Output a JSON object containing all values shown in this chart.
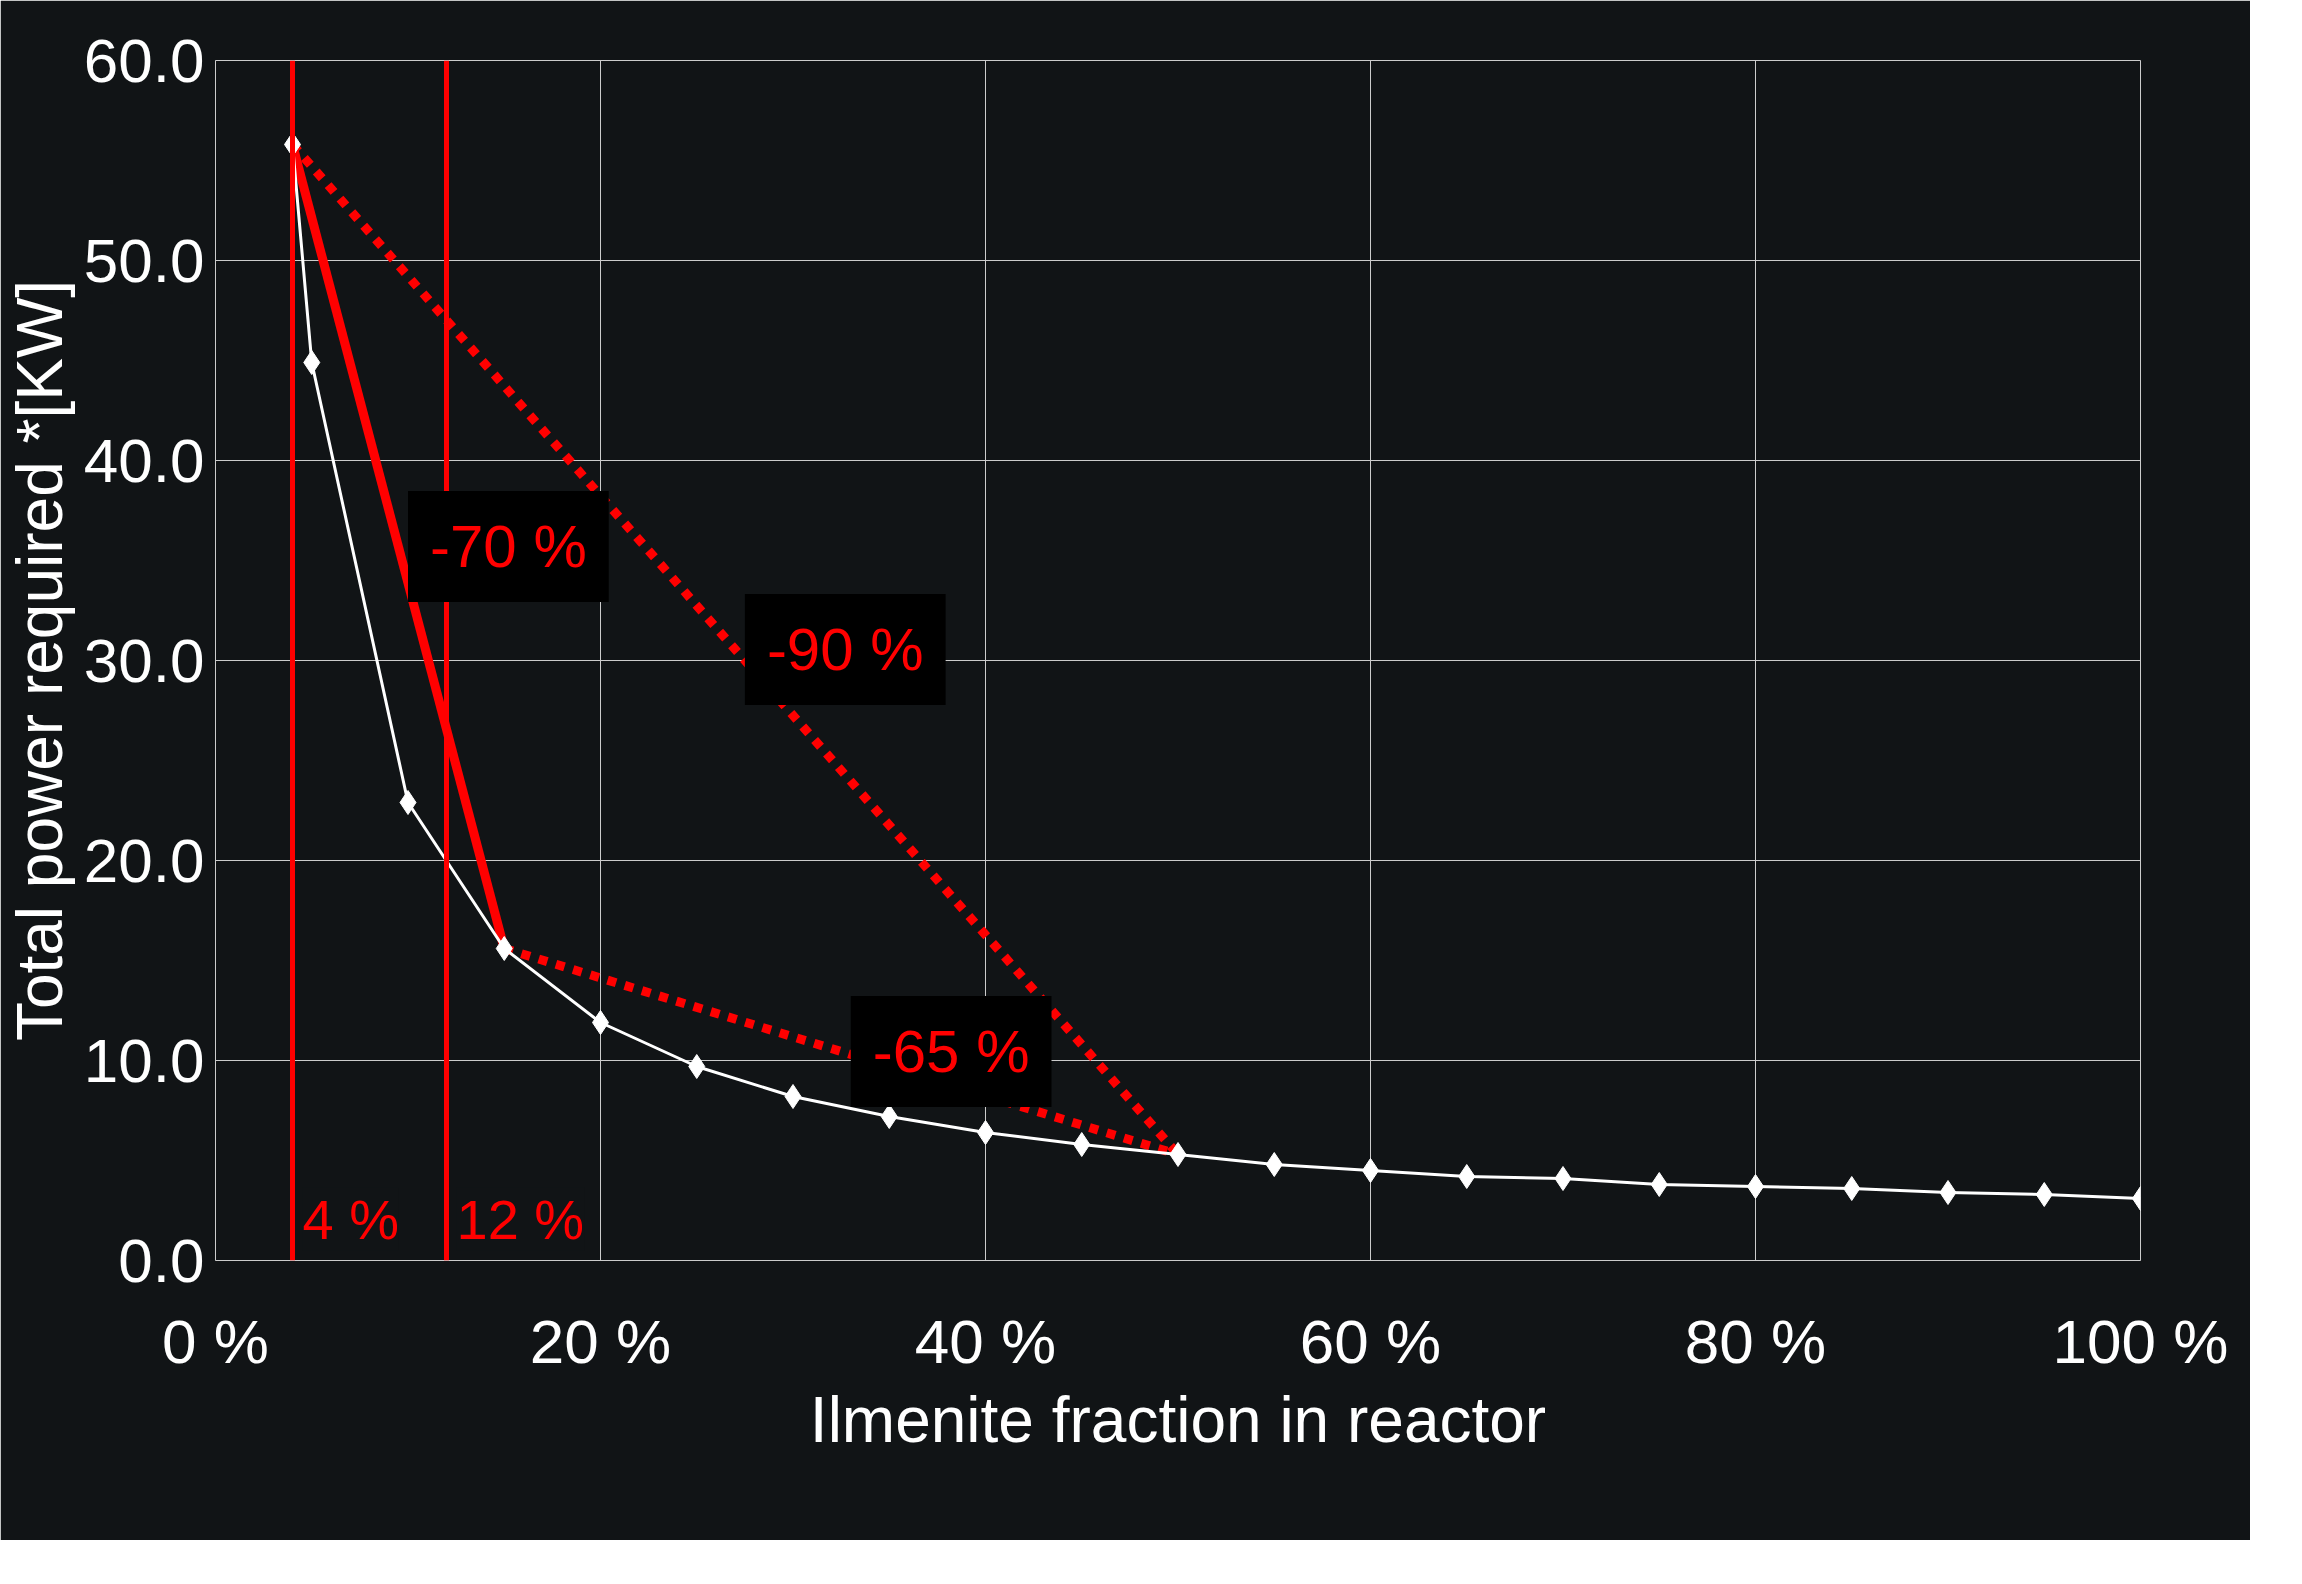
{
  "chart_data": {
    "type": "line",
    "xlabel": "Ilmenite fraction in reactor",
    "ylabel": "Total power required *[KW]",
    "x": [
      4,
      5,
      10,
      15,
      20,
      25,
      30,
      35,
      40,
      45,
      50,
      55,
      60,
      65,
      70,
      75,
      80,
      85,
      90,
      95,
      100
    ],
    "series": [
      {
        "color": "#ffffff",
        "marker": "diamond",
        "line_style": "solid",
        "values": [
          55.8,
          44.9,
          22.9,
          15.6,
          11.9,
          9.7,
          8.2,
          7.2,
          6.4,
          5.8,
          5.3,
          4.8,
          4.5,
          4.2,
          4.1,
          3.8,
          3.7,
          3.6,
          3.4,
          3.3,
          3.1
        ]
      },
      {
        "type": "line",
        "color": "#ff0000",
        "marker": "none",
        "line_style": "solid",
        "x": [
          4,
          15
        ],
        "values": [
          55.8,
          15.6
        ]
      },
      {
        "type": "line",
        "color": "#ff0000",
        "marker": "none",
        "line_style": "dotted",
        "x": [
          4,
          50
        ],
        "values": [
          55.8,
          5.3
        ]
      },
      {
        "type": "line",
        "color": "#ff0000",
        "marker": "none",
        "line_style": "dotted",
        "x": [
          15,
          50
        ],
        "values": [
          15.6,
          5.3
        ]
      }
    ],
    "annotations": [
      "-70 %",
      "-90 %",
      "-65 %"
    ],
    "ref_lines": [
      {
        "axis": "x",
        "value": 4,
        "label": "4 %",
        "color": "#ff0000"
      },
      {
        "axis": "x",
        "value": 12,
        "label": "12 %",
        "color": "#ff0000"
      }
    ],
    "xlim": [
      0,
      100
    ],
    "xticks": [
      {
        "value": 0,
        "label": "0 %"
      },
      {
        "value": 20,
        "label": "20 %"
      },
      {
        "value": 40,
        "label": "40 %"
      },
      {
        "value": 60,
        "label": "60 %"
      },
      {
        "value": 80,
        "label": "80 %"
      },
      {
        "value": 100,
        "label": "100 %"
      }
    ],
    "ylim": [
      0,
      60
    ],
    "yticks": [
      {
        "value": 0,
        "label": "0.0"
      },
      {
        "value": 10,
        "label": "10.0"
      },
      {
        "value": 20,
        "label": "20.0"
      },
      {
        "value": 30,
        "label": "30.0"
      },
      {
        "value": 40,
        "label": "40.0"
      },
      {
        "value": 50,
        "label": "50.0"
      },
      {
        "value": 60,
        "label": "60.0"
      }
    ],
    "grid": true
  }
}
